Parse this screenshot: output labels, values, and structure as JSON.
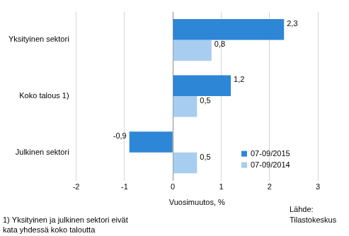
{
  "chart_data": {
    "type": "bar",
    "orientation": "horizontal",
    "categories": [
      "Yksityinen sektori",
      "Koko talous 1)",
      "Julkinen sektori"
    ],
    "series": [
      {
        "name": "07-09/2015",
        "color": "#2e86d6",
        "values": [
          2.3,
          1.2,
          -0.9
        ],
        "value_labels": [
          "2,3",
          "1,2",
          "-0,9"
        ]
      },
      {
        "name": "07-09/2014",
        "color": "#a7cdf0",
        "values": [
          0.8,
          0.5,
          0.5
        ],
        "value_labels": [
          "0,8",
          "0,5",
          "0,5"
        ]
      }
    ],
    "x_label": "Vuosimuutos, %",
    "xlim": [
      -2,
      3
    ],
    "xticks": [
      -2,
      -1,
      0,
      1,
      2,
      3
    ],
    "grid": true,
    "legend": "lower right",
    "data_labels": true,
    "footnote": [
      "1) Yksityinen ja julkinen sektori eivät",
      "kata yhdessä koko taloutta"
    ],
    "source": [
      "Lähde:",
      "Tilastokeskus"
    ]
  }
}
